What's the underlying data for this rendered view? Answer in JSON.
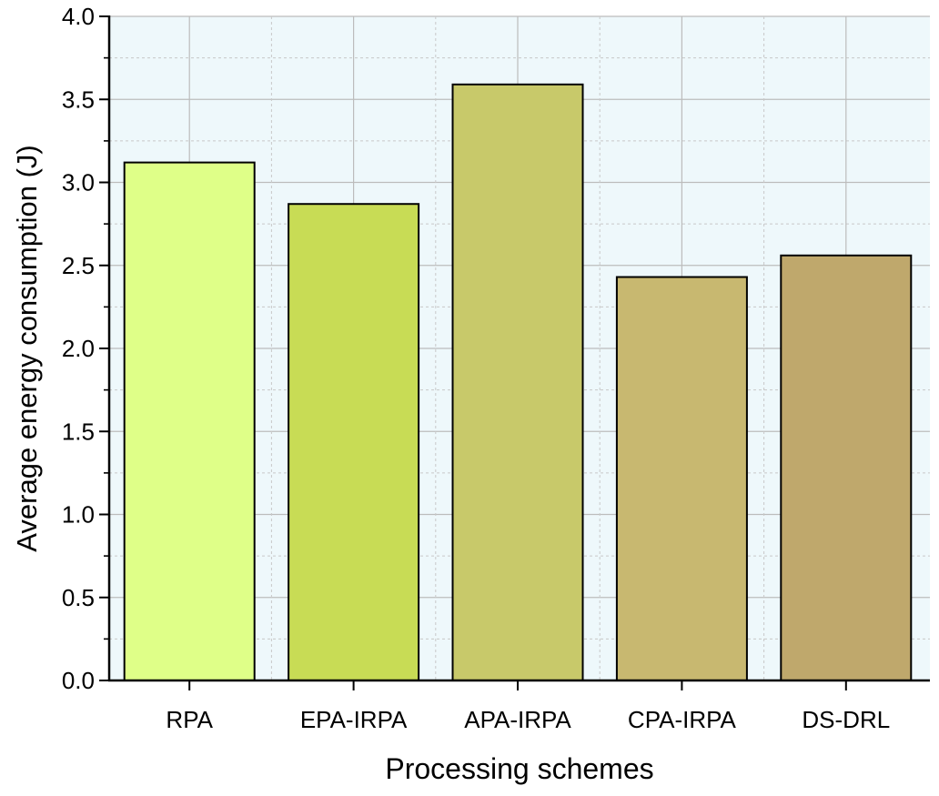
{
  "chart_data": {
    "type": "bar",
    "title": "",
    "xlabel": "Processing schemes",
    "ylabel": "Average energy consumption (J)",
    "categories": [
      "RPA",
      "EPA-IRPA",
      "APA-IRPA",
      "CPA-IRPA",
      "DS-DRL"
    ],
    "values": [
      3.12,
      2.87,
      3.59,
      2.43,
      2.56
    ],
    "colors": [
      "#dfff88",
      "#c8dc55",
      "#c8c96a",
      "#c8b870",
      "#bfa86c"
    ],
    "ylim": [
      0,
      4.0
    ],
    "yticks": [
      "0.0",
      "0.5",
      "1.0",
      "1.5",
      "2.0",
      "2.5",
      "3.0",
      "3.5",
      "4.0"
    ],
    "grid": true,
    "legend": "none"
  },
  "style": {
    "plot_background": "#eef8fb",
    "bar_stroke": "#000000",
    "major_grid": "#bcbcbc",
    "minor_grid": "#c8c8c8"
  }
}
